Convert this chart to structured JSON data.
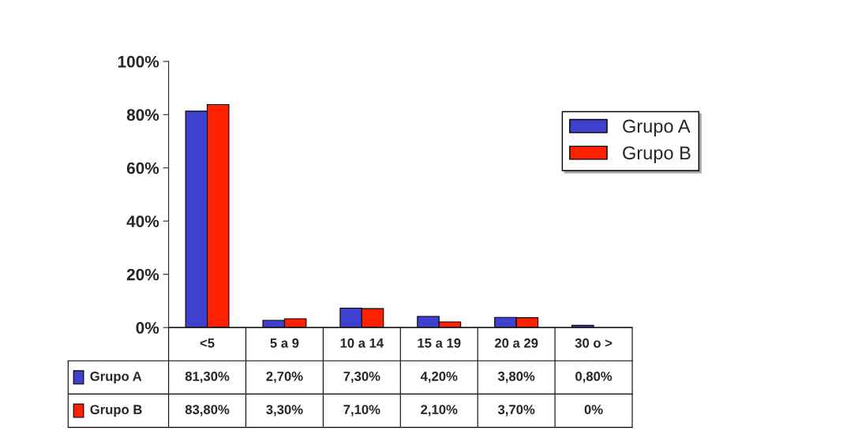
{
  "chart_data": {
    "type": "bar",
    "categories": [
      "<5",
      "5 a 9",
      "10 a 14",
      "15 a 19",
      "20 a 29",
      "30 o >"
    ],
    "series": [
      {
        "name": "Grupo A",
        "color": "#4040d0",
        "values": [
          81.3,
          2.7,
          7.3,
          4.2,
          3.8,
          0.8
        ],
        "value_labels": [
          "81,30%",
          "2,70%",
          "7,30%",
          "4,20%",
          "3,80%",
          "0,80%"
        ]
      },
      {
        "name": "Grupo B",
        "color": "#ff2000",
        "values": [
          83.8,
          3.3,
          7.1,
          2.1,
          3.7,
          0
        ],
        "value_labels": [
          "83,80%",
          "3,30%",
          "7,10%",
          "2,10%",
          "3,70%",
          "0%"
        ]
      }
    ],
    "ylim": [
      0,
      100
    ],
    "yticks": [
      {
        "value": 0,
        "label": "0%"
      },
      {
        "value": 20,
        "label": "20%"
      },
      {
        "value": 40,
        "label": "40%"
      },
      {
        "value": 60,
        "label": "60%"
      },
      {
        "value": 80,
        "label": "80%"
      },
      {
        "value": 100,
        "label": "100%"
      }
    ],
    "grid": false,
    "legend": "top right"
  }
}
